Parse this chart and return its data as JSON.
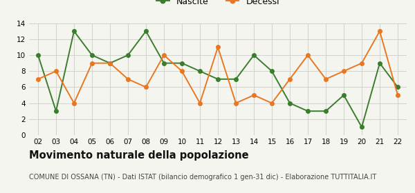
{
  "years": [
    "02",
    "03",
    "04",
    "05",
    "06",
    "07",
    "08",
    "09",
    "10",
    "11",
    "12",
    "13",
    "14",
    "15",
    "16",
    "17",
    "18",
    "19",
    "20",
    "21",
    "22"
  ],
  "nascite": [
    10,
    3,
    13,
    10,
    9,
    10,
    13,
    9,
    9,
    8,
    7,
    7,
    10,
    8,
    4,
    3,
    3,
    5,
    1,
    9,
    6
  ],
  "decessi": [
    7,
    8,
    4,
    9,
    9,
    7,
    6,
    10,
    8,
    4,
    11,
    4,
    5,
    4,
    7,
    10,
    7,
    8,
    9,
    13,
    5
  ],
  "nascite_color": "#3a7d2c",
  "decessi_color": "#e87722",
  "background_color": "#f5f5f0",
  "grid_color": "#cccccc",
  "ylim": [
    0,
    14
  ],
  "yticks": [
    0,
    2,
    4,
    6,
    8,
    10,
    12,
    14
  ],
  "title": "Movimento naturale della popolazione",
  "subtitle": "COMUNE DI OSSANA (TN) - Dati ISTAT (bilancio demografico 1 gen-31 dic) - Elaborazione TUTTITALIA.IT",
  "legend_nascite": "Nascite",
  "legend_decessi": "Decessi",
  "title_fontsize": 10.5,
  "subtitle_fontsize": 7.0,
  "tick_fontsize": 7.5,
  "legend_fontsize": 9,
  "marker_size": 4,
  "line_width": 1.4
}
